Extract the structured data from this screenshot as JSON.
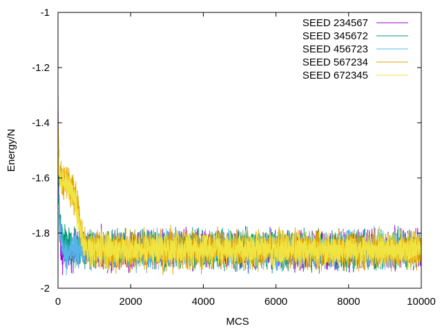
{
  "chart_data": {
    "type": "line",
    "title": "",
    "xlabel": "MCS",
    "ylabel": "Energy/N",
    "xlim": [
      0,
      10000
    ],
    "ylim": [
      -2,
      -1
    ],
    "xticks": [
      0,
      2000,
      4000,
      6000,
      8000,
      10000
    ],
    "xtick_labels": [
      "0",
      "2000",
      "4000",
      "6000",
      "8000",
      "10000"
    ],
    "yticks": [
      -2,
      -1.8,
      -1.6,
      -1.4,
      -1.2,
      -1
    ],
    "ytick_labels": [
      "-2",
      "-1.8",
      "-1.6",
      "-1.4",
      "-1.2",
      "-1"
    ],
    "grid": false,
    "legend_position": "top-right",
    "series": [
      {
        "name": "SEED 234567",
        "color": "#9400d3",
        "x": [
          0,
          20,
          50,
          100,
          200,
          300,
          400,
          600,
          1000,
          2000,
          4000,
          6000,
          8000,
          10000
        ],
        "y": [
          -1.3,
          -1.62,
          -1.8,
          -1.88,
          -1.87,
          -1.86,
          -1.86,
          -1.86,
          -1.86,
          -1.86,
          -1.86,
          -1.86,
          -1.86,
          -1.86
        ],
        "noise": 0.04
      },
      {
        "name": "SEED 345672",
        "color": "#009e73",
        "x": [
          0,
          20,
          50,
          100,
          200,
          300,
          400,
          600,
          1000,
          2000,
          4000,
          6000,
          8000,
          10000
        ],
        "y": [
          -1.55,
          -1.68,
          -1.75,
          -1.8,
          -1.84,
          -1.85,
          -1.86,
          -1.86,
          -1.86,
          -1.86,
          -1.86,
          -1.86,
          -1.86,
          -1.86
        ],
        "noise": 0.04
      },
      {
        "name": "SEED 456723",
        "color": "#56b4e9",
        "x": [
          0,
          20,
          50,
          100,
          200,
          300,
          400,
          600,
          1000,
          2000,
          4000,
          6000,
          8000,
          10000
        ],
        "y": [
          -1.6,
          -1.7,
          -1.78,
          -1.84,
          -1.87,
          -1.87,
          -1.87,
          -1.86,
          -1.86,
          -1.86,
          -1.86,
          -1.86,
          -1.86,
          -1.86
        ],
        "noise": 0.04
      },
      {
        "name": "SEED 567234",
        "color": "#e69f00",
        "x": [
          0,
          20,
          50,
          100,
          200,
          300,
          400,
          500,
          600,
          700,
          1000,
          2000,
          4000,
          6000,
          8000,
          10000
        ],
        "y": [
          -1.4,
          -1.55,
          -1.6,
          -1.62,
          -1.61,
          -1.62,
          -1.64,
          -1.68,
          -1.76,
          -1.84,
          -1.86,
          -1.86,
          -1.86,
          -1.86,
          -1.86,
          -1.86
        ],
        "noise": 0.04
      },
      {
        "name": "SEED 672345",
        "color": "#f0e442",
        "x": [
          0,
          20,
          50,
          100,
          200,
          300,
          400,
          500,
          600,
          700,
          1000,
          2000,
          4000,
          6000,
          8000,
          10000
        ],
        "y": [
          -1.45,
          -1.56,
          -1.61,
          -1.63,
          -1.62,
          -1.63,
          -1.65,
          -1.7,
          -1.78,
          -1.85,
          -1.86,
          -1.86,
          -1.86,
          -1.86,
          -1.86,
          -1.86
        ],
        "noise": 0.035
      }
    ]
  }
}
